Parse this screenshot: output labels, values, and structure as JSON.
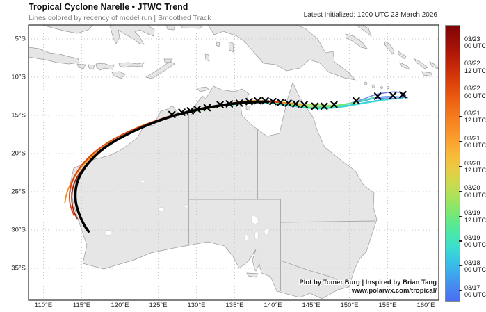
{
  "header": {
    "title": "Tropical Cyclone Narelle • JTWC Trend",
    "subtitle": "Lines colored by recency of model run | Smoothed Track",
    "latest_initialized": "Latest Initialized: 1200 UTC 23 March 2026"
  },
  "axes": {
    "x_ticks": [
      {
        "label": "110°E",
        "lon": 110
      },
      {
        "label": "115°E",
        "lon": 115
      },
      {
        "label": "120°E",
        "lon": 120
      },
      {
        "label": "125°E",
        "lon": 125
      },
      {
        "label": "130°E",
        "lon": 130
      },
      {
        "label": "135°E",
        "lon": 135
      },
      {
        "label": "140°E",
        "lon": 140
      },
      {
        "label": "145°E",
        "lon": 145
      },
      {
        "label": "150°E",
        "lon": 150
      },
      {
        "label": "155°E",
        "lon": 155
      },
      {
        "label": "160°E",
        "lon": 160
      }
    ],
    "y_ticks": [
      {
        "label": "5°S",
        "lat": 5
      },
      {
        "label": "10°S",
        "lat": 10
      },
      {
        "label": "15°S",
        "lat": 15
      },
      {
        "label": "20°S",
        "lat": 20
      },
      {
        "label": "25°S",
        "lat": 25
      },
      {
        "label": "30°S",
        "lat": 30
      },
      {
        "label": "35°S",
        "lat": 35
      }
    ]
  },
  "colorbar": {
    "ticks": [
      {
        "date": "03/23",
        "utc": "00 UTC"
      },
      {
        "date": "03/22",
        "utc": "12 UTC"
      },
      {
        "date": "03/22",
        "utc": "00 UTC"
      },
      {
        "date": "03/21",
        "utc": "12 UTC"
      },
      {
        "date": "03/21",
        "utc": "00 UTC"
      },
      {
        "date": "03/20",
        "utc": "12 UTC"
      },
      {
        "date": "03/20",
        "utc": "00 UTC"
      },
      {
        "date": "03/19",
        "utc": "12 UTC"
      },
      {
        "date": "03/19",
        "utc": "00 UTC"
      },
      {
        "date": "03/18",
        "utc": "00 UTC"
      },
      {
        "date": "03/17",
        "utc": "00 UTC"
      }
    ],
    "colors": [
      "#7f0405",
      "#960c07",
      "#ad1607",
      "#c42608",
      "#d63b0a",
      "#e5500f",
      "#ef6716",
      "#f57d1e",
      "#f99127",
      "#fba631",
      "#f7bc39",
      "#e8cc44",
      "#cdd94e",
      "#abe25a",
      "#85e76a",
      "#60e98c",
      "#47e7ae",
      "#3adcd2",
      "#37c3e5",
      "#3fa5ec",
      "#4687f0",
      "#4a6df2"
    ]
  },
  "credit": {
    "line1": "Plot by Tomer Burg | Inspired by Brian Tang",
    "line2": "www.polarwx.com/tropical/"
  },
  "map_colors": {
    "ocean": "#ffffff",
    "land": "#e6e6e6",
    "coast": "#9b9b9b",
    "grid": "#c9c9c9",
    "state_border": "#a5a5a5",
    "latest_track": "#000000"
  },
  "chart_data": {
    "type": "line",
    "title": "Tropical Cyclone Narelle JTWC model-run trend, smoothed tracks",
    "x_units": "degrees E",
    "y_units": "degrees S",
    "x_range": [
      108.0,
      161.6
    ],
    "y_range": [
      3.2,
      39.2
    ],
    "grid": "dotted 5-degree",
    "legend_position": "right colorbar by model run time",
    "tracks": [
      {
        "run": "03/17 00 UTC",
        "color": "#6f86f0",
        "width": 1.6,
        "points": [
          [
            149.8,
            13.5
          ],
          [
            151.6,
            13.0
          ],
          [
            153.2,
            12.3
          ],
          [
            154.9,
            12.0
          ],
          [
            156.3,
            11.9
          ],
          [
            157.3,
            12.2
          ],
          [
            157.4,
            12.6
          ],
          [
            156.3,
            12.8
          ],
          [
            154.9,
            12.7
          ],
          [
            153.4,
            12.8
          ]
        ]
      },
      {
        "run": "03/18 00 UTC",
        "color": "#4a9eee",
        "width": 1.6,
        "points": [
          [
            157.6,
            12.7
          ],
          [
            155.8,
            12.5
          ],
          [
            153.8,
            12.6
          ],
          [
            151.6,
            13.2
          ],
          [
            149.6,
            13.5
          ],
          [
            147.0,
            13.9
          ],
          [
            145.0,
            13.9
          ]
        ]
      },
      {
        "run": "03/19 00 UTC",
        "color": "#3ac3e8",
        "width": 1.6,
        "points": [
          [
            156.9,
            12.8
          ],
          [
            154.3,
            12.9
          ],
          [
            151.2,
            13.5
          ],
          [
            148.3,
            13.9
          ],
          [
            145.4,
            14.1
          ],
          [
            142.5,
            13.8
          ],
          [
            140.3,
            13.5
          ]
        ]
      },
      {
        "run": "03/19 12 UTC",
        "color": "#3ae0cb",
        "width": 1.6,
        "points": [
          [
            155.2,
            12.9
          ],
          [
            151.9,
            13.4
          ],
          [
            148.7,
            14.0
          ],
          [
            145.4,
            14.2
          ],
          [
            142.1,
            13.7
          ],
          [
            139.2,
            13.3
          ],
          [
            136.3,
            13.4
          ],
          [
            134.3,
            13.7
          ]
        ]
      },
      {
        "run": "03/20 00 UTC",
        "color": "#4fe89f",
        "width": 1.6,
        "points": [
          [
            153.4,
            12.6
          ],
          [
            149.8,
            13.6
          ],
          [
            146.3,
            14.1
          ],
          [
            142.9,
            13.7
          ],
          [
            139.4,
            13.2
          ],
          [
            136.0,
            13.4
          ],
          [
            132.9,
            13.8
          ],
          [
            130.3,
            14.4
          ],
          [
            128.7,
            14.7
          ]
        ]
      },
      {
        "run": "03/20 12 UTC",
        "color": "#7ce76f",
        "width": 1.6,
        "points": [
          [
            151.0,
            13.3
          ],
          [
            147.4,
            13.9
          ],
          [
            143.8,
            13.7
          ],
          [
            140.1,
            13.2
          ],
          [
            136.5,
            13.3
          ],
          [
            133.0,
            13.8
          ],
          [
            129.6,
            14.5
          ],
          [
            126.5,
            15.2
          ],
          [
            124.5,
            15.9
          ],
          [
            123.2,
            16.5
          ]
        ]
      },
      {
        "run": "03/21 00 UTC",
        "color": "#a9e25c",
        "width": 1.6,
        "points": [
          [
            148.1,
            13.7
          ],
          [
            144.3,
            13.6
          ],
          [
            140.5,
            13.2
          ],
          [
            136.7,
            13.2
          ],
          [
            132.9,
            13.8
          ],
          [
            129.0,
            14.5
          ],
          [
            125.6,
            15.5
          ],
          [
            122.5,
            16.6
          ],
          [
            120.3,
            17.7
          ],
          [
            119.0,
            18.6
          ]
        ]
      },
      {
        "run": "03/21 12 UTC",
        "color": "#d6d94c",
        "width": 1.6,
        "points": [
          [
            145.6,
            13.9
          ],
          [
            142.0,
            13.4
          ],
          [
            138.1,
            13.0
          ],
          [
            134.3,
            13.5
          ],
          [
            130.5,
            14.2
          ],
          [
            126.9,
            15.0
          ],
          [
            123.4,
            16.2
          ],
          [
            120.5,
            17.5
          ],
          [
            118.1,
            19.1
          ],
          [
            116.7,
            20.5
          ]
        ]
      },
      {
        "run": "03/22 00 UTC",
        "color": "#f3bd36",
        "width": 1.6,
        "points": [
          [
            144.1,
            13.7
          ],
          [
            140.7,
            13.2
          ],
          [
            137.0,
            13.0
          ],
          [
            133.2,
            13.6
          ],
          [
            129.4,
            14.4
          ],
          [
            125.8,
            15.3
          ],
          [
            122.3,
            16.5
          ],
          [
            119.2,
            18.1
          ],
          [
            116.9,
            19.9
          ],
          [
            115.0,
            21.7
          ],
          [
            114.0,
            23.2
          ]
        ]
      },
      {
        "run": "03/22 12 UTC",
        "color": "#f1881f",
        "width": 1.8,
        "points": [
          [
            143.0,
            13.5
          ],
          [
            139.4,
            13.1
          ],
          [
            135.6,
            13.3
          ],
          [
            131.8,
            14.0
          ],
          [
            128.0,
            14.8
          ],
          [
            124.3,
            15.9
          ],
          [
            120.9,
            17.4
          ],
          [
            117.8,
            19.1
          ],
          [
            115.4,
            21.1
          ],
          [
            113.8,
            23.3
          ],
          [
            113.0,
            25.2
          ],
          [
            112.8,
            26.4
          ]
        ]
      },
      {
        "run": "03/23 00 UTC",
        "color": "#d8400e",
        "width": 1.8,
        "points": [
          [
            141.0,
            13.3
          ],
          [
            137.6,
            13.0
          ],
          [
            134.0,
            13.5
          ],
          [
            130.1,
            14.2
          ],
          [
            126.3,
            15.1
          ],
          [
            122.7,
            16.4
          ],
          [
            119.2,
            18.0
          ],
          [
            116.3,
            20.0
          ],
          [
            114.3,
            22.3
          ],
          [
            113.4,
            24.6
          ],
          [
            113.4,
            26.6
          ],
          [
            114.0,
            28.1
          ]
        ]
      },
      {
        "run": "03/23 06 UTC",
        "color": "#b01d07",
        "width": 1.8,
        "points": [
          [
            140.0,
            13.2
          ],
          [
            136.5,
            13.2
          ],
          [
            132.9,
            13.7
          ],
          [
            129.0,
            14.5
          ],
          [
            125.2,
            15.6
          ],
          [
            121.6,
            17.1
          ],
          [
            118.3,
            18.9
          ],
          [
            115.8,
            21.1
          ],
          [
            114.1,
            23.4
          ],
          [
            113.6,
            25.6
          ],
          [
            113.9,
            27.5
          ],
          [
            114.4,
            28.5
          ]
        ]
      },
      {
        "run": "03/23 12 UTC (latest)",
        "color": "#000000",
        "width": 3.6,
        "points": [
          [
            139.4,
            13.2
          ],
          [
            136.0,
            13.3
          ],
          [
            132.3,
            13.8
          ],
          [
            128.5,
            14.6
          ],
          [
            124.9,
            15.7
          ],
          [
            121.2,
            17.3
          ],
          [
            118.0,
            19.1
          ],
          [
            115.6,
            21.4
          ],
          [
            114.3,
            23.7
          ],
          [
            114.1,
            26.1
          ],
          [
            114.7,
            28.1
          ],
          [
            115.4,
            29.5
          ],
          [
            115.9,
            30.2
          ]
        ]
      }
    ],
    "best_track_x_markers": [
      [
        126.8,
        14.9
      ],
      [
        128.1,
        14.6
      ],
      [
        129.2,
        14.4
      ],
      [
        130.1,
        14.2
      ],
      [
        131.4,
        14.0
      ],
      [
        133.1,
        13.6
      ],
      [
        134.3,
        13.5
      ],
      [
        135.6,
        13.4
      ],
      [
        136.9,
        13.2
      ],
      [
        138.0,
        13.1
      ],
      [
        139.0,
        13.1
      ],
      [
        140.0,
        13.2
      ],
      [
        141.0,
        13.3
      ],
      [
        142.0,
        13.4
      ],
      [
        143.0,
        13.5
      ],
      [
        144.1,
        13.6
      ],
      [
        145.5,
        13.8
      ],
      [
        146.7,
        13.8
      ],
      [
        148.0,
        13.6
      ],
      [
        150.9,
        13.1
      ],
      [
        153.7,
        12.5
      ],
      [
        155.7,
        12.4
      ],
      [
        157.0,
        12.3
      ]
    ]
  }
}
